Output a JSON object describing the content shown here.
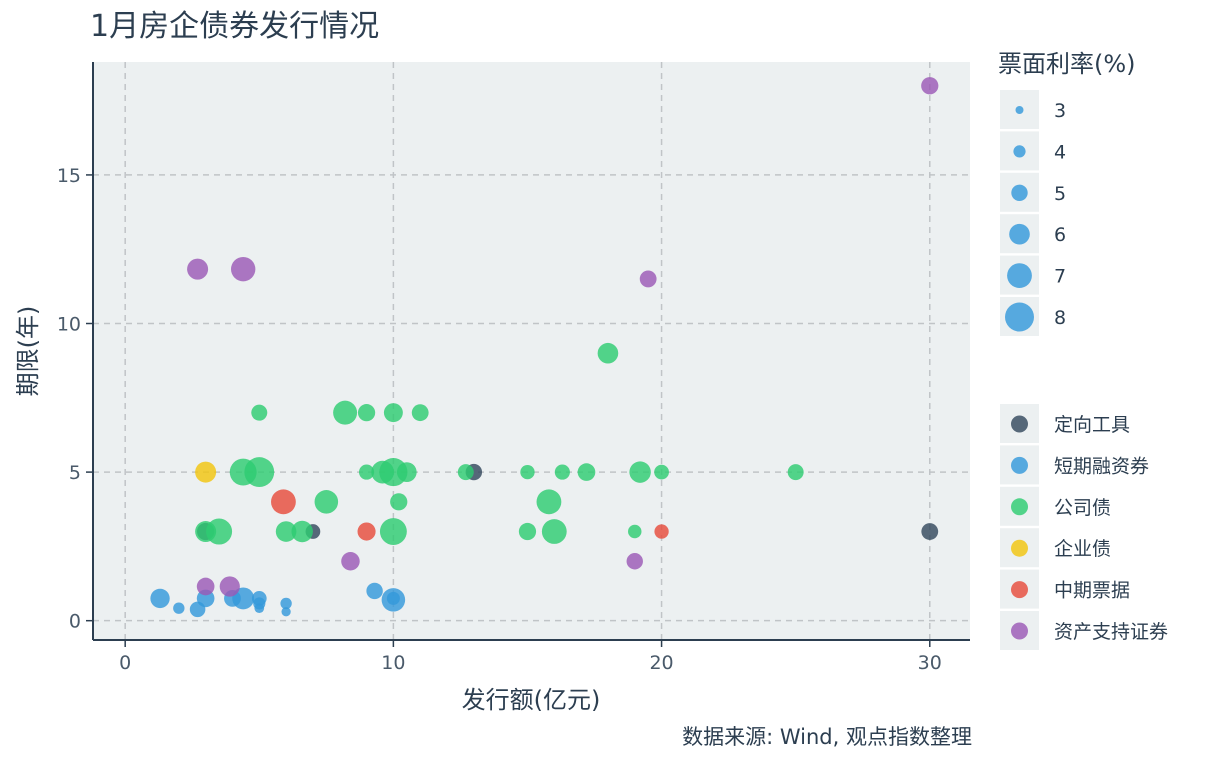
{
  "chart_data": {
    "type": "scatter",
    "title": "1月房企债券发行情况",
    "xlabel": "发行额(亿元)",
    "ylabel": "期限(年)",
    "caption": "数据来源: Wind, 观点指数整理",
    "xlim": [
      -1.2,
      31.5
    ],
    "ylim": [
      -0.65,
      18.8
    ],
    "x_ticks": [
      0,
      10,
      20,
      30
    ],
    "y_ticks": [
      0,
      5,
      10,
      15
    ],
    "grid": true,
    "size_legend": {
      "title": "票面利率(%)",
      "values": [
        3,
        4,
        5,
        6,
        7,
        8
      ]
    },
    "series": [
      {
        "name": "定向工具",
        "color": "#34495e",
        "points": [
          [
            3,
            3,
            5.2
          ],
          [
            7,
            3,
            4.6
          ],
          [
            13,
            5,
            5.0
          ],
          [
            30,
            3,
            5.1
          ]
        ]
      },
      {
        "name": "短期融资券",
        "color": "#3498db",
        "points": [
          [
            1.3,
            0.75,
            5.7
          ],
          [
            2,
            0.42,
            3.8
          ],
          [
            2.7,
            0.38,
            4.8
          ],
          [
            3,
            0.75,
            5.3
          ],
          [
            4,
            0.75,
            5.1
          ],
          [
            4.4,
            0.75,
            6.3
          ],
          [
            5,
            0.75,
            4.6
          ],
          [
            5,
            0.58,
            4.0
          ],
          [
            5,
            0.42,
            3.4
          ],
          [
            6,
            0.58,
            3.8
          ],
          [
            6,
            0.3,
            3.3
          ],
          [
            9.3,
            1.0,
            5.0
          ],
          [
            10,
            0.7,
            6.7
          ],
          [
            10,
            0.75,
            4.2
          ]
        ]
      },
      {
        "name": "公司债",
        "color": "#2ecc71",
        "points": [
          [
            3,
            3,
            6.1
          ],
          [
            3.5,
            3,
            7.3
          ],
          [
            4.4,
            5,
            7.5
          ],
          [
            5,
            5,
            8.2
          ],
          [
            5,
            7,
            4.9
          ],
          [
            6,
            3,
            6.0
          ],
          [
            6.6,
            3,
            6.2
          ],
          [
            7.5,
            4,
            6.7
          ],
          [
            8.2,
            7,
            6.8
          ],
          [
            9,
            7,
            5.2
          ],
          [
            9,
            5,
            4.7
          ],
          [
            9.6,
            5,
            6.5
          ],
          [
            10,
            5,
            7.8
          ],
          [
            10,
            7,
            5.6
          ],
          [
            10,
            3,
            7.5
          ],
          [
            10.5,
            5,
            5.8
          ],
          [
            10.2,
            4,
            5.2
          ],
          [
            11,
            7,
            5.1
          ],
          [
            12.7,
            5,
            4.9
          ],
          [
            15,
            3,
            5.2
          ],
          [
            15,
            5,
            4.5
          ],
          [
            15.8,
            4,
            7.0
          ],
          [
            16,
            3,
            7.0
          ],
          [
            16.3,
            5,
            4.7
          ],
          [
            17.2,
            5,
            5.3
          ],
          [
            18,
            9,
            6.0
          ],
          [
            19,
            3,
            4.3
          ],
          [
            19.2,
            5,
            6.2
          ],
          [
            20,
            5,
            4.6
          ],
          [
            25,
            5,
            4.9
          ]
        ]
      },
      {
        "name": "企业债",
        "color": "#f1c40f",
        "points": [
          [
            3,
            5,
            6.1
          ]
        ]
      },
      {
        "name": "中期票据",
        "color": "#e74c3c",
        "points": [
          [
            5.9,
            4,
            7.0
          ],
          [
            9,
            3,
            5.4
          ],
          [
            20,
            3,
            4.5
          ]
        ]
      },
      {
        "name": "资产支持证券",
        "color": "#9b59b6",
        "points": [
          [
            2.7,
            11.83,
            6.1
          ],
          [
            4.4,
            11.83,
            6.9
          ],
          [
            3,
            1.15,
            5.3
          ],
          [
            3.9,
            1.15,
            5.9
          ],
          [
            8.4,
            2,
            5.5
          ],
          [
            19,
            2,
            5.0
          ],
          [
            19.5,
            11.5,
            5.1
          ],
          [
            30,
            18,
            5.2
          ]
        ]
      }
    ]
  }
}
